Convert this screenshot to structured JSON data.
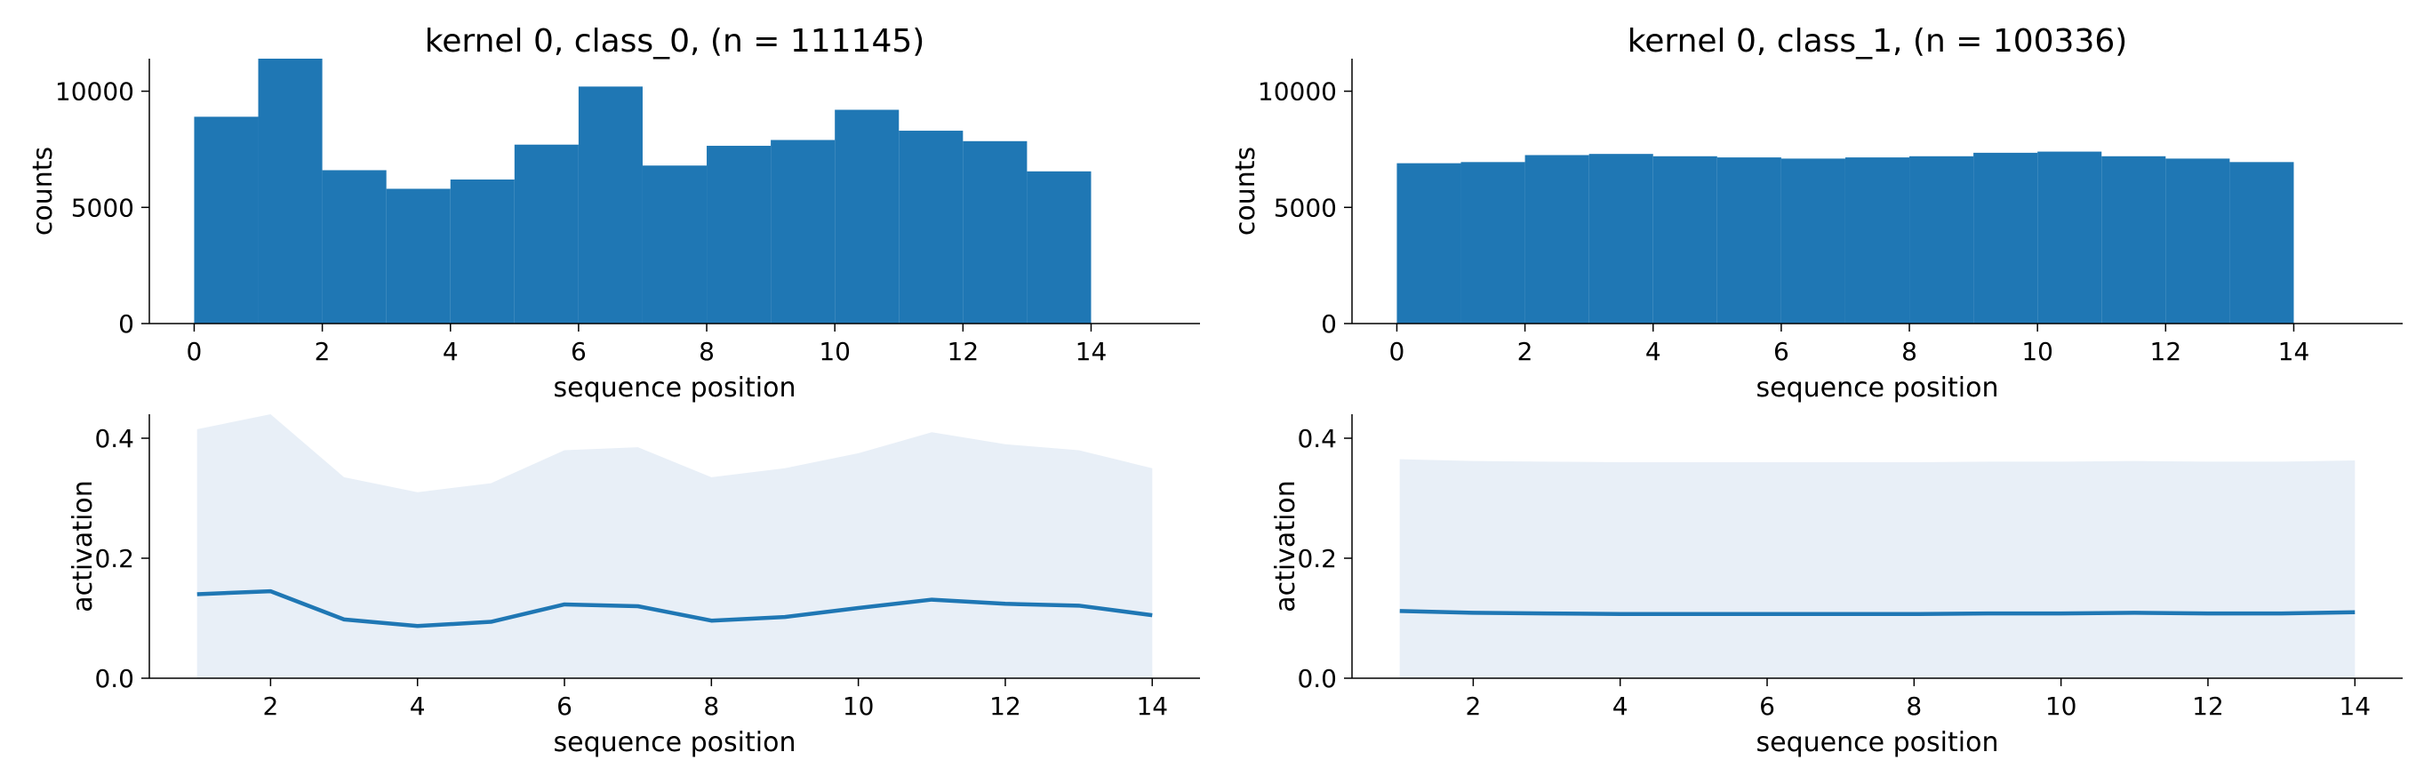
{
  "colors": {
    "bar": "#1f77b4",
    "line": "#1f77b4",
    "band": "#e8eff7",
    "axis": "#000000"
  },
  "chart_data": [
    {
      "id": "hist0",
      "type": "bar",
      "title": "kernel 0, class_0, (n = 111145)",
      "xlabel": "sequence position",
      "ylabel": "counts",
      "xlim": [
        -0.7,
        15.7
      ],
      "ylim": [
        0,
        11400
      ],
      "xticks": [
        0,
        2,
        4,
        6,
        8,
        10,
        12,
        14
      ],
      "yticks": [
        0,
        5000,
        10000
      ],
      "bin_edges": [
        0,
        1,
        2,
        3,
        4,
        5,
        6,
        7,
        8,
        9,
        10,
        11,
        12,
        13,
        14
      ],
      "values": [
        8900,
        11400,
        6600,
        5800,
        6200,
        7700,
        10200,
        6800,
        7650,
        7900,
        9200,
        8300,
        7850,
        6550
      ]
    },
    {
      "id": "hist1",
      "type": "bar",
      "title": "kernel 0, class_1, (n = 100336)",
      "xlabel": "sequence position",
      "ylabel": "counts",
      "xlim": [
        -0.7,
        15.7
      ],
      "ylim": [
        0,
        11400
      ],
      "xticks": [
        0,
        2,
        4,
        6,
        8,
        10,
        12,
        14
      ],
      "yticks": [
        0,
        5000,
        10000
      ],
      "bin_edges": [
        0,
        1,
        2,
        3,
        4,
        5,
        6,
        7,
        8,
        9,
        10,
        11,
        12,
        13,
        14
      ],
      "values": [
        6900,
        6950,
        7250,
        7300,
        7200,
        7150,
        7100,
        7150,
        7200,
        7350,
        7400,
        7200,
        7100,
        6950
      ]
    },
    {
      "id": "line0",
      "type": "line",
      "title": "",
      "xlabel": "sequence position",
      "ylabel": "activation",
      "xlim": [
        0.35,
        14.65
      ],
      "ylim": [
        0.0,
        0.44
      ],
      "xticks": [
        2,
        4,
        6,
        8,
        10,
        12,
        14
      ],
      "yticks": [
        0.0,
        0.2,
        0.4
      ],
      "x": [
        1,
        2,
        3,
        4,
        5,
        6,
        7,
        8,
        9,
        10,
        11,
        12,
        13,
        14
      ],
      "mean": [
        0.14,
        0.145,
        0.098,
        0.087,
        0.094,
        0.123,
        0.12,
        0.096,
        0.102,
        0.117,
        0.131,
        0.124,
        0.121,
        0.105
      ],
      "band_upper": [
        0.415,
        0.44,
        0.335,
        0.31,
        0.325,
        0.38,
        0.385,
        0.335,
        0.35,
        0.375,
        0.41,
        0.39,
        0.38,
        0.35
      ],
      "band_lower": [
        0,
        0,
        0,
        0,
        0,
        0,
        0,
        0,
        0,
        0,
        0,
        0,
        0,
        0
      ]
    },
    {
      "id": "line1",
      "type": "line",
      "title": "",
      "xlabel": "sequence position",
      "ylabel": "activation",
      "xlim": [
        0.35,
        14.65
      ],
      "ylim": [
        0.0,
        0.44
      ],
      "xticks": [
        2,
        4,
        6,
        8,
        10,
        12,
        14
      ],
      "yticks": [
        0.0,
        0.2,
        0.4
      ],
      "x": [
        1,
        2,
        3,
        4,
        5,
        6,
        7,
        8,
        9,
        10,
        11,
        12,
        13,
        14
      ],
      "mean": [
        0.112,
        0.109,
        0.108,
        0.107,
        0.107,
        0.107,
        0.107,
        0.107,
        0.108,
        0.108,
        0.109,
        0.108,
        0.108,
        0.11
      ],
      "band_upper": [
        0.365,
        0.362,
        0.361,
        0.36,
        0.36,
        0.36,
        0.36,
        0.36,
        0.361,
        0.361,
        0.362,
        0.361,
        0.361,
        0.363
      ],
      "band_lower": [
        0,
        0,
        0,
        0,
        0,
        0,
        0,
        0,
        0,
        0,
        0,
        0,
        0,
        0
      ]
    }
  ]
}
